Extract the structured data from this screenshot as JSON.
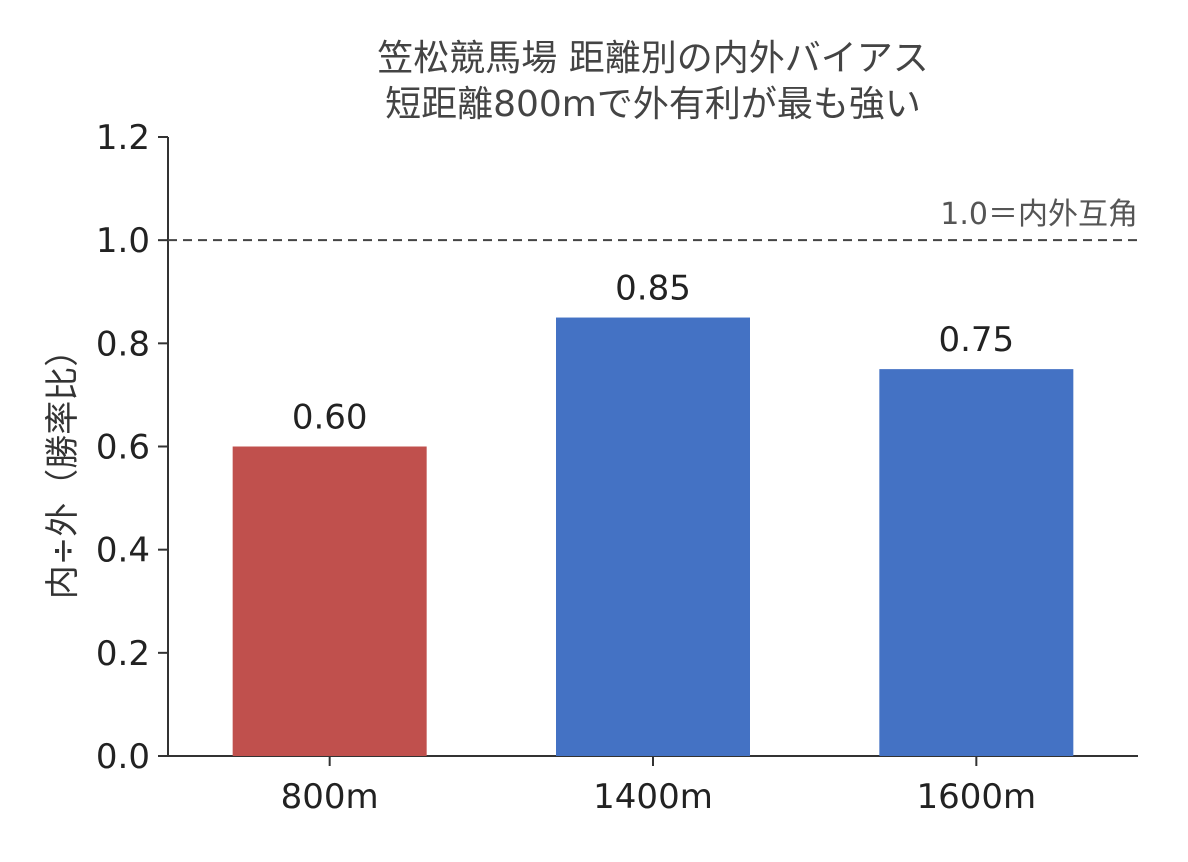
{
  "chart_data": {
    "type": "bar",
    "title_lines": [
      "笠松競馬場 距離別の内外バイアス",
      "短距離800mで外有利が最も強い"
    ],
    "xlabel": "",
    "ylabel": "内÷外（勝率比）",
    "categories": [
      "800m",
      "1400m",
      "1600m"
    ],
    "values": [
      0.6,
      0.85,
      0.75
    ],
    "value_labels": [
      "0.60",
      "0.85",
      "0.75"
    ],
    "bar_colors": [
      "#c0504d",
      "#4472c4",
      "#4472c4"
    ],
    "ylim": [
      0,
      1.2
    ],
    "yticks": [
      0,
      0.2,
      0.4,
      0.6,
      0.8,
      1.0,
      1.2
    ],
    "ytick_labels": [
      "0.0",
      "0.2",
      "0.4",
      "0.6",
      "0.8",
      "1.0",
      "1.2"
    ],
    "reference_line": {
      "value": 1.0,
      "label": "1.0＝内外互角",
      "style": "dashed",
      "color": "#444444"
    },
    "grid": false,
    "legend": "none"
  }
}
